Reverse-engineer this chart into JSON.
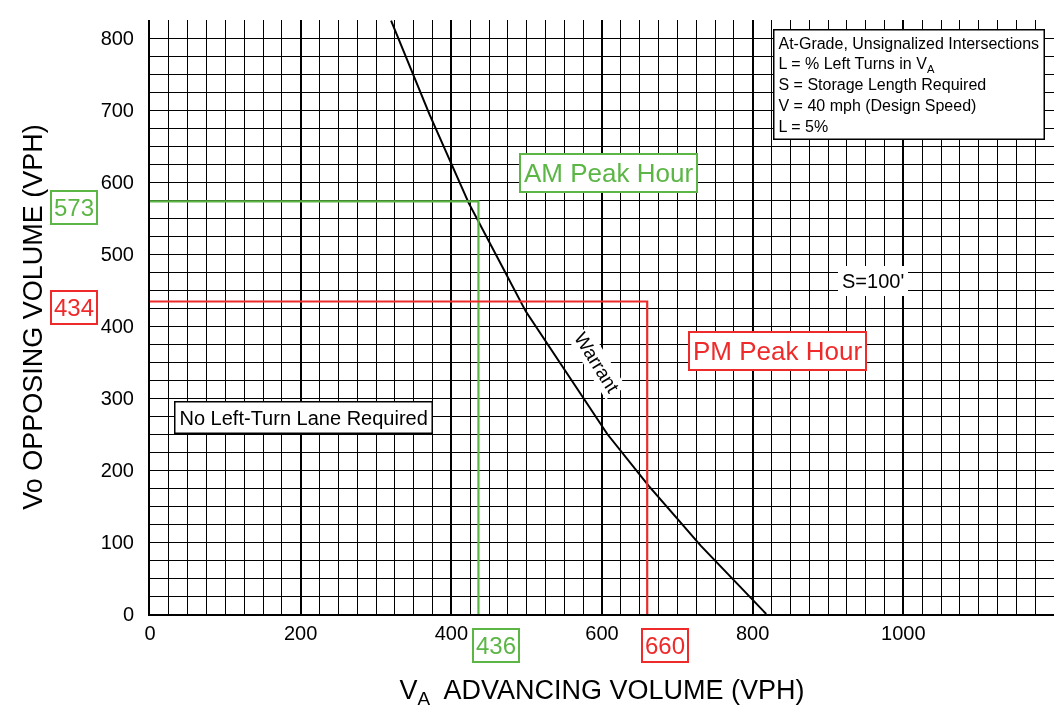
{
  "chart_data": {
    "type": "line",
    "xlabel": "V$_{A}$  ADVANCING VOLUME (VPH)",
    "ylabel": "Vo OPPOSING VOLUME (VPH)",
    "xlim": [
      0,
      1200
    ],
    "xticks": [
      0,
      200,
      400,
      600,
      800,
      1000
    ],
    "ylim": [
      0,
      825
    ],
    "yticks": [
      0,
      100,
      200,
      300,
      400,
      500,
      600,
      700,
      800
    ],
    "grid": true,
    "legend": false,
    "marker": "none",
    "line_style": "solid",
    "series": [
      {
        "name": "Warrant",
        "color": "#000000",
        "x": [
          320,
          371,
          423,
          499,
          607,
          662,
          731,
          818
        ],
        "values": [
          824,
          694,
          571,
          420,
          250,
          178,
          95,
          0
        ]
      },
      {
        "name": "AM Peak Hour",
        "color": "#5cb646",
        "x": [
          0,
          436,
          436
        ],
        "values": [
          573,
          573,
          0
        ]
      },
      {
        "name": "PM Peak Hour",
        "color": "#ee2a2a",
        "x": [
          0,
          660,
          660
        ],
        "values": [
          434,
          434,
          0
        ]
      }
    ],
    "annotations": [
      "At-Grade, Unsignalized Intersections\nL = % Left Turns in V$_{A}$\nS = Storage Length Required\nV = 40 mph (Design Speed)\nL = 5%",
      {
        "text": "573",
        "x": 0,
        "y": 573
      },
      {
        "text": "436",
        "x": 436,
        "y": 0
      },
      {
        "text": "434",
        "x": 0,
        "y": 434
      },
      {
        "text": "660",
        "x": 660,
        "y": 0
      },
      "No Left-Turn Lane Required",
      "S=100'"
    ]
  }
}
